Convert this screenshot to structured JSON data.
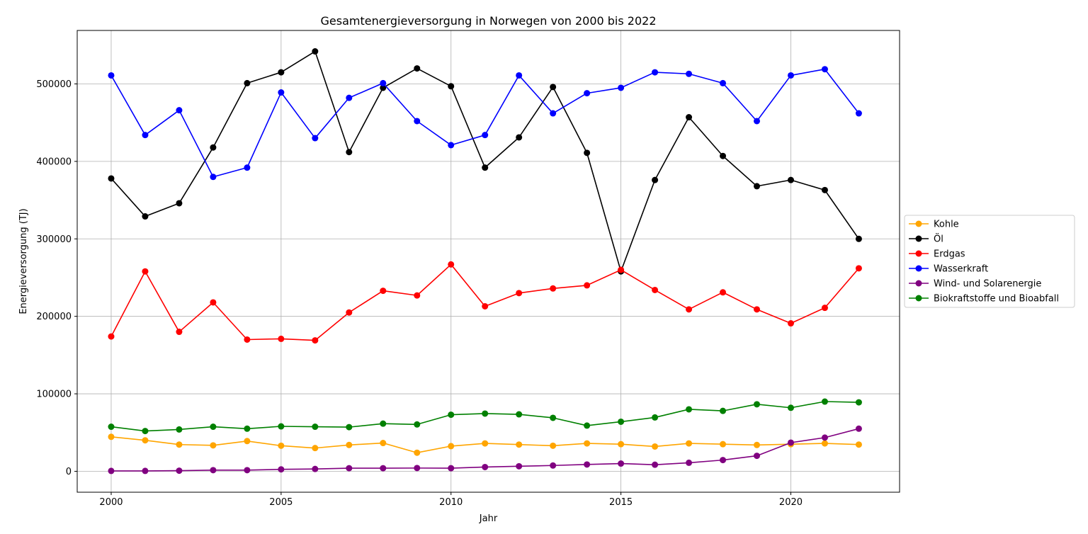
{
  "chart_data": {
    "type": "line",
    "title": "Gesamtenergieversorgung in Norwegen von 2000 bis 2022",
    "xlabel": "Jahr",
    "ylabel": "Energieversorgung (TJ)",
    "x": [
      2000,
      2001,
      2002,
      2003,
      2004,
      2005,
      2006,
      2007,
      2008,
      2009,
      2010,
      2011,
      2012,
      2013,
      2014,
      2015,
      2016,
      2017,
      2018,
      2019,
      2020,
      2021,
      2022
    ],
    "xlim": [
      1999,
      2023.2
    ],
    "ylim": [
      -27000,
      569000
    ],
    "xticks": [
      2000,
      2005,
      2010,
      2015,
      2020
    ],
    "xtick_labels": [
      "2000",
      "2005",
      "2010",
      "2015",
      "2020"
    ],
    "yticks": [
      0,
      100000,
      200000,
      300000,
      400000,
      500000
    ],
    "ytick_labels": [
      "0",
      "100000",
      "200000",
      "300000",
      "400000",
      "500000"
    ],
    "grid": true,
    "legend_position": "outside right",
    "series": [
      {
        "name": "Kohle",
        "color": "#ffa500",
        "values": [
          44500,
          40000,
          34500,
          33500,
          39000,
          33000,
          30000,
          34000,
          36500,
          24000,
          32500,
          36000,
          34500,
          33000,
          36000,
          35000,
          32000,
          36000,
          35000,
          34000,
          35000,
          36000,
          34500
        ]
      },
      {
        "name": "Öl",
        "color": "#000000",
        "values": [
          378000,
          329000,
          346000,
          418000,
          501000,
          515000,
          542000,
          412000,
          495000,
          520000,
          497000,
          392000,
          431000,
          496000,
          411000,
          258000,
          376000,
          457000,
          407000,
          368000,
          376000,
          363000,
          300000
        ]
      },
      {
        "name": "Erdgas",
        "color": "#ff0000",
        "values": [
          174000,
          258000,
          180000,
          218000,
          170000,
          171000,
          169000,
          205000,
          233000,
          227000,
          267000,
          213000,
          230000,
          236000,
          240000,
          260000,
          234000,
          209000,
          231000,
          209000,
          191000,
          211000,
          262000
        ]
      },
      {
        "name": "Wasserkraft",
        "color": "#0000ff",
        "values": [
          511000,
          434000,
          466000,
          380000,
          392000,
          489000,
          430000,
          482000,
          501000,
          452000,
          421000,
          434000,
          511000,
          462000,
          488000,
          495000,
          515000,
          513000,
          501000,
          452000,
          511000,
          519000,
          462000
        ]
      },
      {
        "name": "Wind- und Solarenergie",
        "color": "#800080",
        "values": [
          500,
          500,
          800,
          1500,
          1500,
          2500,
          3000,
          4000,
          4000,
          4200,
          4000,
          5500,
          6500,
          7500,
          8800,
          10000,
          8500,
          11000,
          14500,
          20000,
          37000,
          43500,
          55000
        ]
      },
      {
        "name": "Biokraftstoffe und Bioabfall",
        "color": "#008000",
        "values": [
          57500,
          52000,
          54000,
          57500,
          55000,
          58000,
          57500,
          57000,
          61500,
          60500,
          73000,
          74500,
          73500,
          69000,
          59000,
          64000,
          69500,
          80000,
          78000,
          86500,
          82000,
          90000,
          89000
        ]
      }
    ]
  }
}
